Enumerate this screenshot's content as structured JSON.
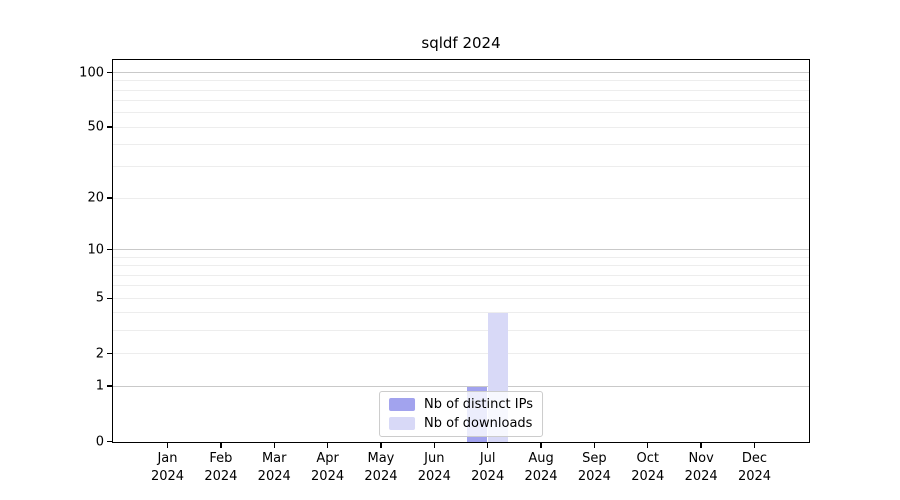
{
  "title": "sqldf 2024",
  "chart_data": {
    "type": "bar",
    "title": "sqldf 2024",
    "x": [
      "Jan",
      "Feb",
      "Mar",
      "Apr",
      "May",
      "Jun",
      "Jul",
      "Aug",
      "Sep",
      "Oct",
      "Nov",
      "Dec"
    ],
    "x_year": "2024",
    "series": [
      {
        "name": "Nb of distinct IPs",
        "color": "#a2a3ee",
        "values": [
          0,
          0,
          0,
          0,
          0,
          0,
          1,
          0,
          0,
          0,
          0,
          0
        ]
      },
      {
        "name": "Nb of downloads",
        "color": "#d8d9f7",
        "values": [
          0,
          0,
          0,
          0,
          0,
          0,
          4,
          0,
          0,
          0,
          0,
          0
        ]
      }
    ],
    "scale": "log1p",
    "ylim": [
      0,
      100
    ],
    "y_ticks": [
      0,
      1,
      2,
      5,
      10,
      20,
      50,
      100
    ],
    "major_gridlines": [
      1,
      10,
      100
    ],
    "minor_gridlines": [
      2,
      3,
      4,
      5,
      6,
      7,
      8,
      9,
      20,
      30,
      40,
      50,
      60,
      70,
      80,
      90
    ],
    "grid": true,
    "legend_position": "lower center",
    "legend_items": [
      "Nb of distinct IPs",
      "Nb of downloads"
    ]
  },
  "colors": {
    "axis": "#000000",
    "grid_major": "#c9c9c9",
    "grid_minor": "#ededed",
    "legend_border": "#cccccc",
    "background": "#ffffff"
  }
}
